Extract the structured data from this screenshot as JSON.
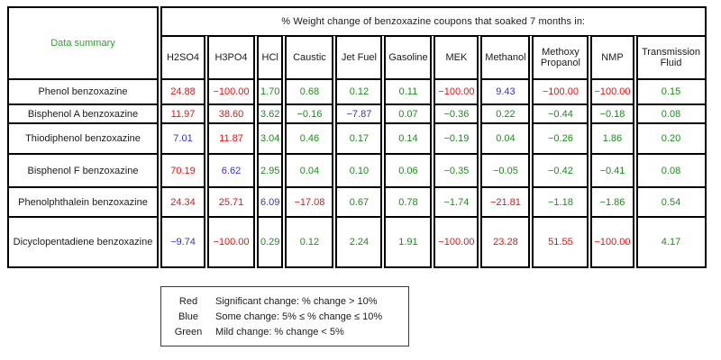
{
  "colors": {
    "red": "#ee1111",
    "blue": "#3333cc",
    "green": "#1e8c1e",
    "label_green": "#2aa52a"
  },
  "chart_data": {
    "type": "table",
    "title": "% Weight change of benzoxazine coupons that soaked 7 months in:",
    "corner_label": "Data summary",
    "columns": [
      "H2SO4",
      "H3PO4",
      "HCl",
      "Caustic",
      "Jet Fuel",
      "Gasoline",
      "MEK",
      "Methanol",
      "Methoxy Propanol",
      "NMP",
      "Transmission Fluid"
    ],
    "rows": [
      {
        "label": "Phenol benzoxazine",
        "values": [
          {
            "v": "24.88",
            "c": "red"
          },
          {
            "v": "−100.00",
            "c": "red"
          },
          {
            "v": "1.70",
            "c": "green"
          },
          {
            "v": "0.68",
            "c": "green"
          },
          {
            "v": "0.12",
            "c": "green"
          },
          {
            "v": "0.11",
            "c": "green"
          },
          {
            "v": "−100.00",
            "c": "red"
          },
          {
            "v": "9.43",
            "c": "blue"
          },
          {
            "v": "−100.00",
            "c": "red"
          },
          {
            "v": "−100.00",
            "c": "red"
          },
          {
            "v": "0.15",
            "c": "green"
          }
        ]
      },
      {
        "label": "Bisphenol A benzoxazine",
        "values": [
          {
            "v": "11.97",
            "c": "red"
          },
          {
            "v": "38.60",
            "c": "red"
          },
          {
            "v": "3.62",
            "c": "green"
          },
          {
            "v": "−0.16",
            "c": "green"
          },
          {
            "v": "−7.87",
            "c": "blue"
          },
          {
            "v": "0.07",
            "c": "green"
          },
          {
            "v": "−0.36",
            "c": "green"
          },
          {
            "v": "0.22",
            "c": "green"
          },
          {
            "v": "−0.44",
            "c": "green"
          },
          {
            "v": "−0.18",
            "c": "green"
          },
          {
            "v": "0.08",
            "c": "green"
          }
        ]
      },
      {
        "label": "Thiodiphenol benzoxazine",
        "values": [
          {
            "v": "7.01",
            "c": "blue"
          },
          {
            "v": "11.87",
            "c": "red"
          },
          {
            "v": "3.04",
            "c": "green"
          },
          {
            "v": "0.46",
            "c": "green"
          },
          {
            "v": "0.17",
            "c": "green"
          },
          {
            "v": "0.14",
            "c": "green"
          },
          {
            "v": "−0.19",
            "c": "green"
          },
          {
            "v": "0.04",
            "c": "green"
          },
          {
            "v": "−0.26",
            "c": "green"
          },
          {
            "v": "1.86",
            "c": "green"
          },
          {
            "v": "0.20",
            "c": "green"
          }
        ]
      },
      {
        "label": "Bisphenol F benzoxazine",
        "values": [
          {
            "v": "70.19",
            "c": "red"
          },
          {
            "v": "6.62",
            "c": "blue"
          },
          {
            "v": "2.95",
            "c": "green"
          },
          {
            "v": "0.04",
            "c": "green"
          },
          {
            "v": "0.10",
            "c": "green"
          },
          {
            "v": "0.06",
            "c": "green"
          },
          {
            "v": "−0.35",
            "c": "green"
          },
          {
            "v": "−0.05",
            "c": "green"
          },
          {
            "v": "−0.42",
            "c": "green"
          },
          {
            "v": "−0.41",
            "c": "green"
          },
          {
            "v": "0.08",
            "c": "green"
          }
        ]
      },
      {
        "label": "Phenolphthalein benzoxazine",
        "values": [
          {
            "v": "24.34",
            "c": "red"
          },
          {
            "v": "25.71",
            "c": "red"
          },
          {
            "v": "6.09",
            "c": "blue"
          },
          {
            "v": "−17.08",
            "c": "red"
          },
          {
            "v": "0.67",
            "c": "green"
          },
          {
            "v": "0.78",
            "c": "green"
          },
          {
            "v": "−1.74",
            "c": "green"
          },
          {
            "v": "−21.81",
            "c": "red"
          },
          {
            "v": "−1.18",
            "c": "green"
          },
          {
            "v": "−1.86",
            "c": "green"
          },
          {
            "v": "0.54",
            "c": "green"
          }
        ]
      },
      {
        "label": "Dicyclopentadiene benzoxazine",
        "values": [
          {
            "v": "−9.74",
            "c": "blue"
          },
          {
            "v": "−100.00",
            "c": "red"
          },
          {
            "v": "0.29",
            "c": "green"
          },
          {
            "v": "0.12",
            "c": "green"
          },
          {
            "v": "2.24",
            "c": "green"
          },
          {
            "v": "1.91",
            "c": "green"
          },
          {
            "v": "−100.00",
            "c": "red"
          },
          {
            "v": "23.28",
            "c": "red"
          },
          {
            "v": "51.55",
            "c": "red"
          },
          {
            "v": "−100.00",
            "c": "red"
          },
          {
            "v": "4.17",
            "c": "green"
          }
        ]
      }
    ]
  },
  "legend": {
    "items": [
      {
        "word": "Red",
        "description": "Significant change:  % change > 10%"
      },
      {
        "word": "Blue",
        "description": "Some change: 5%  ≤ % change ≤ 10%"
      },
      {
        "word": "Green",
        "description": "Mild change:  % change < 5%"
      }
    ]
  }
}
